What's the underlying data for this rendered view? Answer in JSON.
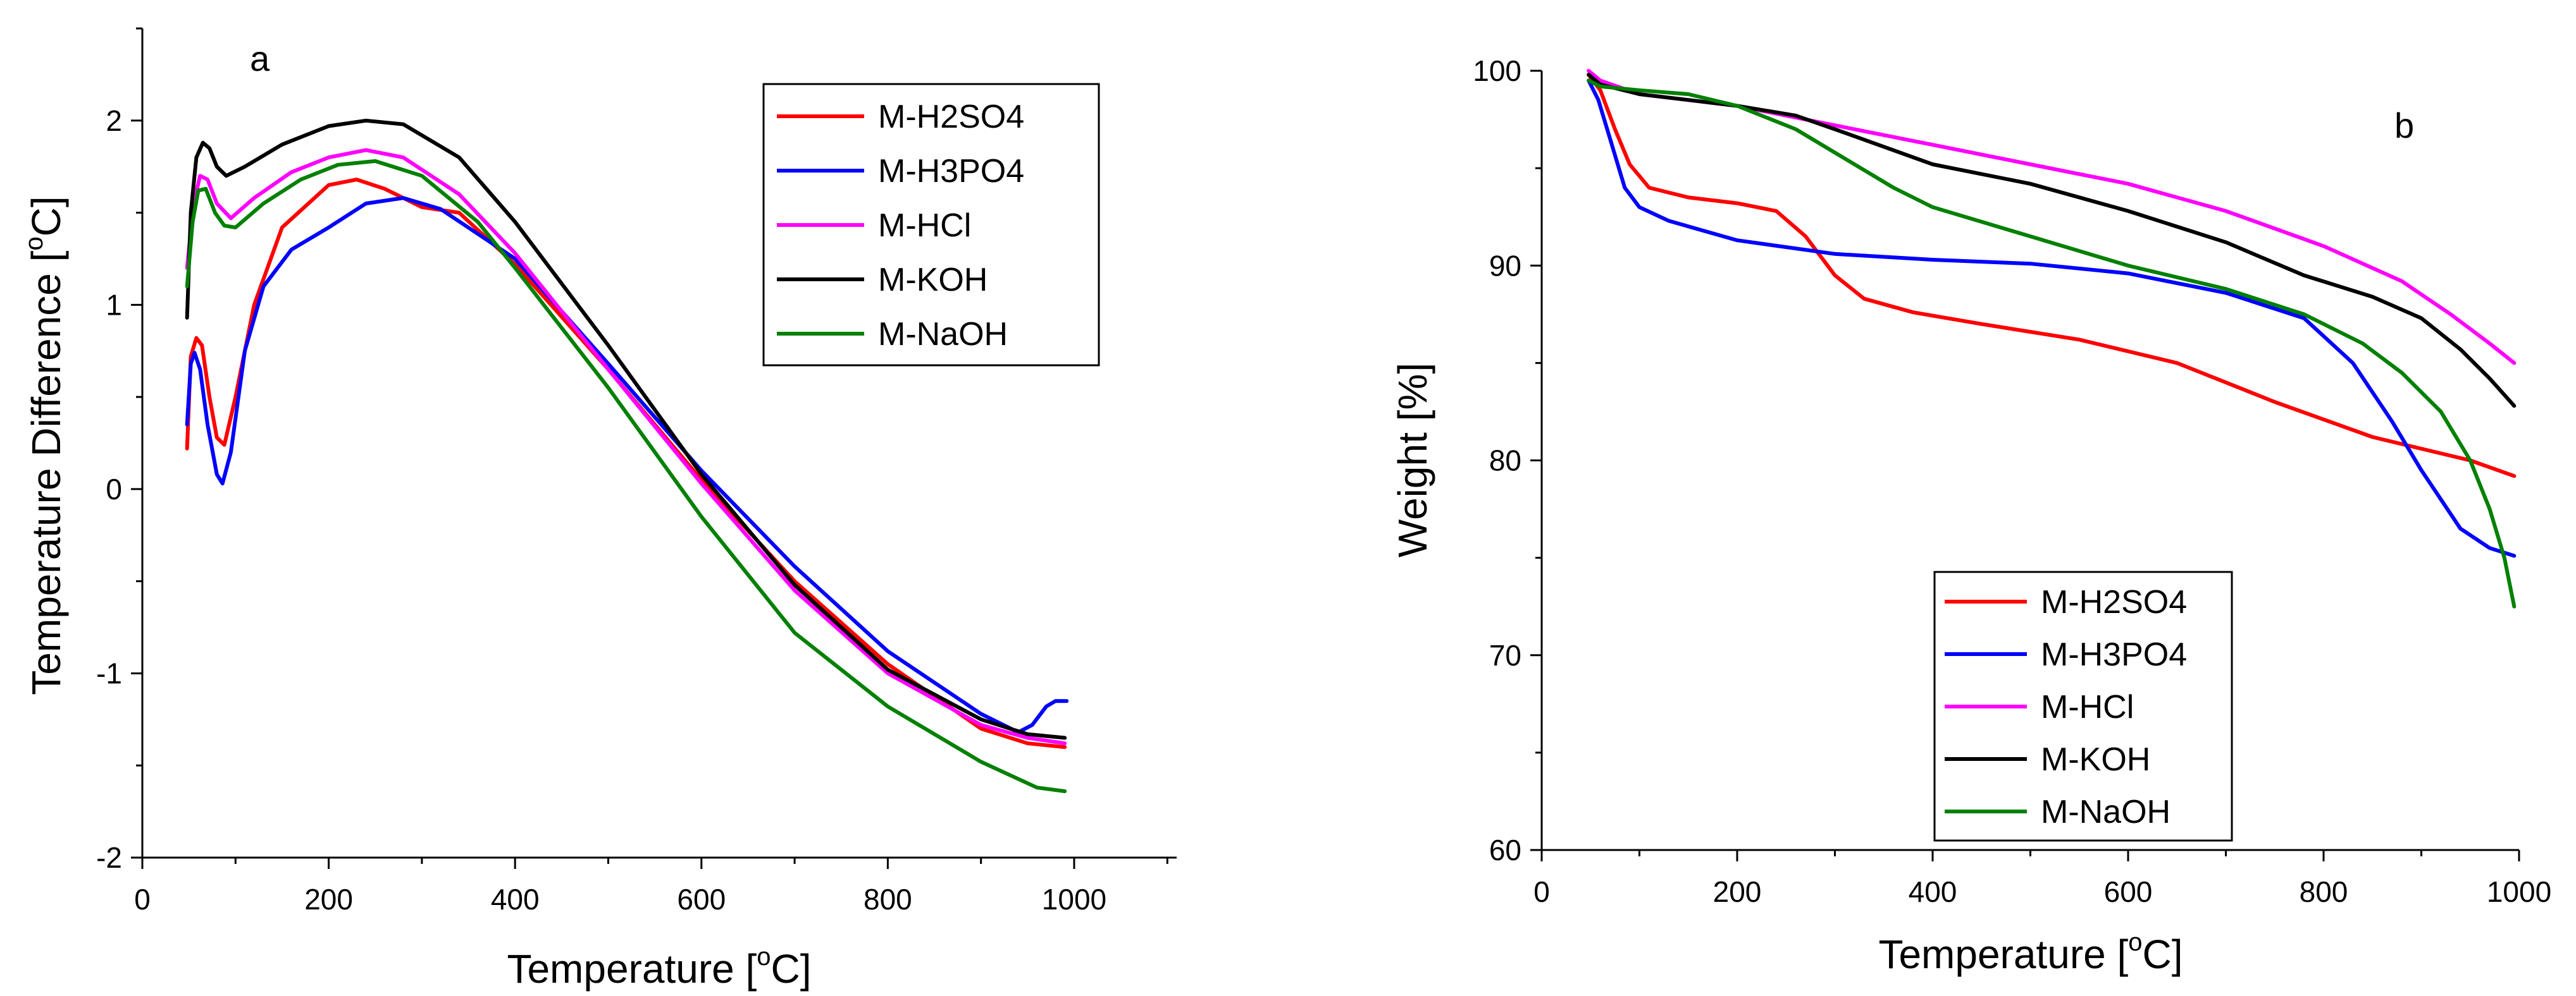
{
  "chart_data": [
    {
      "type": "line",
      "panel_label": "a",
      "xlabel_main": "Temperature [",
      "xlabel_sup": "o",
      "xlabel_end": "C]",
      "ylabel_main": "Temperature Difference [",
      "ylabel_sup": "o",
      "ylabel_end": "C]",
      "xlim": [
        0,
        1110
      ],
      "ylim": [
        -2,
        2.5
      ],
      "xticks": [
        0,
        200,
        400,
        600,
        800,
        1000
      ],
      "yticks": [
        -2,
        -1,
        0,
        1,
        2
      ],
      "xticks_minor": [
        100,
        300,
        500,
        700,
        900,
        1100
      ],
      "yticks_minor": [
        -1.5,
        -0.5,
        0.5,
        1.5,
        2.5
      ],
      "legend_position": "top-right",
      "series": [
        {
          "name": "M-H2SO4",
          "color": "#ff0000",
          "points": [
            [
              48,
              0.22
            ],
            [
              52,
              0.72
            ],
            [
              58,
              0.82
            ],
            [
              64,
              0.78
            ],
            [
              72,
              0.5
            ],
            [
              80,
              0.28
            ],
            [
              88,
              0.24
            ],
            [
              100,
              0.5
            ],
            [
              120,
              1.0
            ],
            [
              150,
              1.42
            ],
            [
              200,
              1.65
            ],
            [
              230,
              1.68
            ],
            [
              260,
              1.63
            ],
            [
              300,
              1.53
            ],
            [
              340,
              1.5
            ],
            [
              400,
              1.22
            ],
            [
              500,
              0.65
            ],
            [
              600,
              0.05
            ],
            [
              700,
              -0.5
            ],
            [
              800,
              -0.95
            ],
            [
              900,
              -1.3
            ],
            [
              950,
              -1.38
            ],
            [
              990,
              -1.4
            ]
          ]
        },
        {
          "name": "M-H3PO4",
          "color": "#0000ff",
          "points": [
            [
              48,
              0.35
            ],
            [
              52,
              0.68
            ],
            [
              56,
              0.74
            ],
            [
              62,
              0.65
            ],
            [
              70,
              0.35
            ],
            [
              80,
              0.08
            ],
            [
              86,
              0.03
            ],
            [
              95,
              0.2
            ],
            [
              110,
              0.75
            ],
            [
              130,
              1.1
            ],
            [
              160,
              1.3
            ],
            [
              200,
              1.42
            ],
            [
              240,
              1.55
            ],
            [
              280,
              1.58
            ],
            [
              320,
              1.52
            ],
            [
              400,
              1.25
            ],
            [
              500,
              0.68
            ],
            [
              600,
              0.1
            ],
            [
              700,
              -0.42
            ],
            [
              800,
              -0.88
            ],
            [
              900,
              -1.22
            ],
            [
              940,
              -1.32
            ],
            [
              955,
              -1.28
            ],
            [
              970,
              -1.18
            ],
            [
              980,
              -1.15
            ],
            [
              992,
              -1.15
            ]
          ]
        },
        {
          "name": "M-HCl",
          "color": "#ff00ff",
          "points": [
            [
              48,
              1.2
            ],
            [
              55,
              1.55
            ],
            [
              62,
              1.7
            ],
            [
              70,
              1.68
            ],
            [
              80,
              1.55
            ],
            [
              95,
              1.47
            ],
            [
              120,
              1.58
            ],
            [
              160,
              1.72
            ],
            [
              200,
              1.8
            ],
            [
              240,
              1.84
            ],
            [
              280,
              1.8
            ],
            [
              340,
              1.6
            ],
            [
              400,
              1.28
            ],
            [
              500,
              0.65
            ],
            [
              600,
              0.03
            ],
            [
              700,
              -0.55
            ],
            [
              800,
              -1.0
            ],
            [
              900,
              -1.28
            ],
            [
              950,
              -1.35
            ],
            [
              990,
              -1.38
            ]
          ]
        },
        {
          "name": "M-KOH",
          "color": "#000000",
          "points": [
            [
              48,
              0.93
            ],
            [
              52,
              1.5
            ],
            [
              58,
              1.8
            ],
            [
              65,
              1.88
            ],
            [
              72,
              1.85
            ],
            [
              80,
              1.75
            ],
            [
              90,
              1.7
            ],
            [
              110,
              1.75
            ],
            [
              150,
              1.87
            ],
            [
              200,
              1.97
            ],
            [
              240,
              2.0
            ],
            [
              280,
              1.98
            ],
            [
              340,
              1.8
            ],
            [
              400,
              1.45
            ],
            [
              500,
              0.78
            ],
            [
              600,
              0.08
            ],
            [
              700,
              -0.52
            ],
            [
              800,
              -0.98
            ],
            [
              900,
              -1.25
            ],
            [
              950,
              -1.33
            ],
            [
              990,
              -1.35
            ]
          ]
        },
        {
          "name": "M-NaOH",
          "color": "#008000",
          "points": [
            [
              48,
              1.1
            ],
            [
              54,
              1.45
            ],
            [
              60,
              1.62
            ],
            [
              68,
              1.63
            ],
            [
              78,
              1.5
            ],
            [
              88,
              1.43
            ],
            [
              100,
              1.42
            ],
            [
              130,
              1.55
            ],
            [
              170,
              1.68
            ],
            [
              210,
              1.76
            ],
            [
              250,
              1.78
            ],
            [
              300,
              1.7
            ],
            [
              360,
              1.45
            ],
            [
              400,
              1.2
            ],
            [
              500,
              0.55
            ],
            [
              600,
              -0.15
            ],
            [
              700,
              -0.78
            ],
            [
              800,
              -1.18
            ],
            [
              900,
              -1.48
            ],
            [
              960,
              -1.62
            ],
            [
              990,
              -1.64
            ]
          ]
        }
      ]
    },
    {
      "type": "line",
      "panel_label": "b",
      "xlabel_main": "Temperature [",
      "xlabel_sup": "o",
      "xlabel_end": "C]",
      "ylabel": "Weight [%]",
      "xlim": [
        0,
        1000
      ],
      "ylim": [
        60,
        100
      ],
      "xticks": [
        0,
        200,
        400,
        600,
        800,
        1000
      ],
      "yticks": [
        60,
        70,
        80,
        90,
        100
      ],
      "xticks_minor": [
        100,
        300,
        500,
        700,
        900
      ],
      "yticks_minor": [
        65,
        75,
        85,
        95
      ],
      "legend_position": "bottom-center",
      "series": [
        {
          "name": "M-H2SO4",
          "color": "#ff0000",
          "points": [
            [
              48,
              99.8
            ],
            [
              60,
              99
            ],
            [
              75,
              97
            ],
            [
              90,
              95.2
            ],
            [
              110,
              94
            ],
            [
              150,
              93.5
            ],
            [
              200,
              93.2
            ],
            [
              240,
              92.8
            ],
            [
              270,
              91.5
            ],
            [
              300,
              89.5
            ],
            [
              330,
              88.3
            ],
            [
              380,
              87.6
            ],
            [
              450,
              87
            ],
            [
              550,
              86.2
            ],
            [
              650,
              85
            ],
            [
              750,
              83
            ],
            [
              850,
              81.2
            ],
            [
              950,
              80
            ],
            [
              995,
              79.2
            ]
          ]
        },
        {
          "name": "M-H3PO4",
          "color": "#0000ff",
          "points": [
            [
              48,
              99.5
            ],
            [
              58,
              98.5
            ],
            [
              70,
              96.5
            ],
            [
              85,
              94
            ],
            [
              100,
              93
            ],
            [
              130,
              92.3
            ],
            [
              200,
              91.3
            ],
            [
              300,
              90.6
            ],
            [
              400,
              90.3
            ],
            [
              500,
              90.1
            ],
            [
              600,
              89.6
            ],
            [
              700,
              88.6
            ],
            [
              780,
              87.3
            ],
            [
              830,
              85
            ],
            [
              870,
              82
            ],
            [
              900,
              79.5
            ],
            [
              940,
              76.5
            ],
            [
              970,
              75.5
            ],
            [
              995,
              75.1
            ]
          ]
        },
        {
          "name": "M-HCl",
          "color": "#ff00ff",
          "points": [
            [
              48,
              100
            ],
            [
              60,
              99.5
            ],
            [
              100,
              98.8
            ],
            [
              200,
              98.2
            ],
            [
              300,
              97.2
            ],
            [
              400,
              96.2
            ],
            [
              500,
              95.2
            ],
            [
              600,
              94.2
            ],
            [
              700,
              92.8
            ],
            [
              800,
              91
            ],
            [
              880,
              89.2
            ],
            [
              930,
              87.5
            ],
            [
              970,
              86
            ],
            [
              995,
              85
            ]
          ]
        },
        {
          "name": "M-KOH",
          "color": "#000000",
          "points": [
            [
              48,
              99.8
            ],
            [
              60,
              99.3
            ],
            [
              100,
              98.8
            ],
            [
              200,
              98.2
            ],
            [
              260,
              97.7
            ],
            [
              300,
              97
            ],
            [
              400,
              95.2
            ],
            [
              500,
              94.2
            ],
            [
              600,
              92.8
            ],
            [
              700,
              91.2
            ],
            [
              780,
              89.5
            ],
            [
              850,
              88.4
            ],
            [
              900,
              87.3
            ],
            [
              940,
              85.7
            ],
            [
              970,
              84.2
            ],
            [
              995,
              82.8
            ]
          ]
        },
        {
          "name": "M-NaOH",
          "color": "#008000",
          "points": [
            [
              48,
              99.5
            ],
            [
              60,
              99.2
            ],
            [
              100,
              99
            ],
            [
              150,
              98.8
            ],
            [
              200,
              98.2
            ],
            [
              260,
              97
            ],
            [
              300,
              95.8
            ],
            [
              360,
              94
            ],
            [
              400,
              93
            ],
            [
              500,
              91.5
            ],
            [
              600,
              90
            ],
            [
              700,
              88.8
            ],
            [
              780,
              87.5
            ],
            [
              840,
              86
            ],
            [
              880,
              84.5
            ],
            [
              920,
              82.5
            ],
            [
              950,
              80
            ],
            [
              970,
              77.5
            ],
            [
              985,
              75
            ],
            [
              995,
              72.5
            ]
          ]
        }
      ]
    }
  ]
}
